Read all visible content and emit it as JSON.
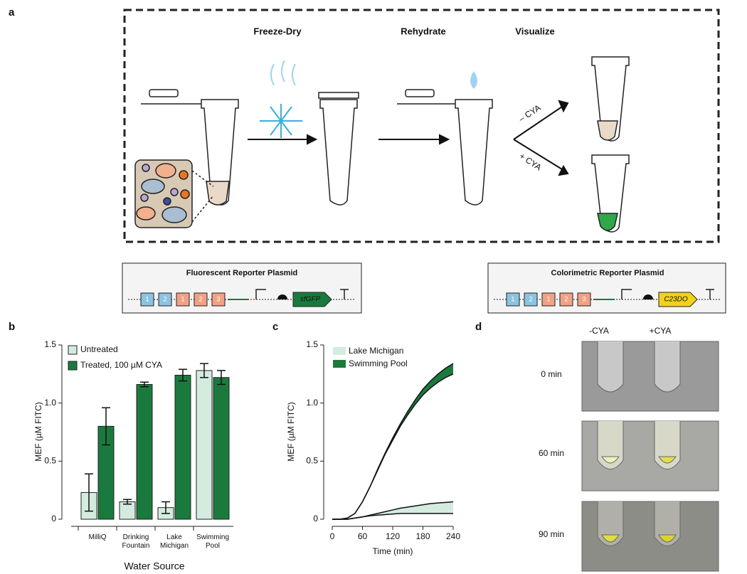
{
  "panel_labels": [
    "a",
    "b",
    "c",
    "d"
  ],
  "schematic": {
    "steps": [
      "Freeze-Dry",
      "Rehydrate",
      "Visualize"
    ],
    "branches": [
      "– CYA",
      "+ CYA"
    ]
  },
  "plasmids": [
    {
      "title": "Fluorescent Reporter Plasmid",
      "parts": [
        "1",
        "2",
        "1",
        "2",
        "3"
      ],
      "reporter": "sfGFP",
      "reporter_color": "#1a7a3e"
    },
    {
      "title": "Colorimetric Reporter Plasmid",
      "parts": [
        "1",
        "2",
        "1",
        "2",
        "3"
      ],
      "reporter": "C23DO",
      "reporter_color": "#f2d21b"
    }
  ],
  "chart_data": [
    {
      "type": "bar",
      "ylabel": "MEF (µM FITC)",
      "xlabel": "Water Source",
      "categories": [
        "MilliQ",
        "Drinking Fountain",
        "Lake Michigan",
        "Swimming Pool"
      ],
      "series": [
        {
          "name": "Untreated",
          "color": "#d4ece0",
          "values": [
            0.23,
            0.15,
            0.1,
            1.28
          ],
          "errors": [
            0.16,
            0.02,
            0.05,
            0.06
          ]
        },
        {
          "name": "Treated, 100 µM CYA",
          "color": "#1a7a3e",
          "values": [
            0.8,
            1.16,
            1.24,
            1.22
          ],
          "errors": [
            0.16,
            0.02,
            0.05,
            0.06
          ]
        }
      ],
      "ylim": [
        0,
        1.5
      ],
      "yticks": [
        0,
        0.5,
        {
          "value": 1,
          "label": "1.0"
        },
        1.5
      ]
    },
    {
      "type": "band",
      "ylabel": "MEF (µM FITC)",
      "xlabel": "Time (min)",
      "x": [
        0,
        15,
        30,
        45,
        60,
        75,
        90,
        105,
        120,
        135,
        150,
        165,
        180,
        195,
        210,
        225,
        240
      ],
      "series": [
        {
          "name": "Lake Michigan",
          "color": "#d4ece0",
          "lower": [
            0,
            0,
            0,
            0.01,
            0.02,
            0.03,
            0.035,
            0.04,
            0.045,
            0.05,
            0.05,
            0.05,
            0.05,
            0.05,
            0.05,
            0.05,
            0.05
          ],
          "upper": [
            0,
            0,
            0,
            0.01,
            0.02,
            0.035,
            0.05,
            0.065,
            0.08,
            0.095,
            0.105,
            0.115,
            0.125,
            0.135,
            0.14,
            0.145,
            0.15
          ]
        },
        {
          "name": "Swimming Pool",
          "color": "#1a7a3e",
          "lower": [
            0,
            0,
            0.01,
            0.05,
            0.15,
            0.28,
            0.42,
            0.56,
            0.68,
            0.8,
            0.9,
            0.99,
            1.07,
            1.13,
            1.18,
            1.22,
            1.25
          ],
          "upper": [
            0,
            0,
            0.01,
            0.05,
            0.15,
            0.28,
            0.43,
            0.57,
            0.7,
            0.82,
            0.93,
            1.03,
            1.12,
            1.19,
            1.25,
            1.3,
            1.34
          ]
        }
      ],
      "xlim": [
        0,
        240
      ],
      "xticks": [
        0,
        60,
        120,
        180,
        240
      ],
      "ylim": [
        0,
        1.5
      ],
      "yticks": [
        0,
        0.5,
        {
          "value": 1,
          "label": "1.0"
        },
        1.5
      ]
    }
  ],
  "photos": {
    "columns": [
      "-CYA",
      "+CYA"
    ],
    "rows": [
      "0 min",
      "60 min",
      "90 min"
    ]
  }
}
